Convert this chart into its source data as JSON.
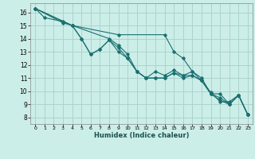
{
  "xlabel": "Humidex (Indice chaleur)",
  "bg_color": "#cceee8",
  "grid_color": "#aad4cc",
  "line_color": "#1a7070",
  "xlim": [
    -0.5,
    23.5
  ],
  "ylim": [
    7.5,
    16.7
  ],
  "xticks": [
    0,
    1,
    2,
    3,
    4,
    5,
    6,
    7,
    8,
    9,
    10,
    11,
    12,
    13,
    14,
    15,
    16,
    17,
    18,
    19,
    20,
    21,
    22,
    23
  ],
  "yticks": [
    8,
    9,
    10,
    11,
    12,
    13,
    14,
    15,
    16
  ],
  "lines": [
    [
      [
        0,
        16.3
      ],
      [
        1,
        15.6
      ],
      [
        3,
        15.3
      ],
      [
        4,
        15.0
      ],
      [
        5,
        14.0
      ],
      [
        6,
        12.8
      ],
      [
        7,
        13.2
      ],
      [
        8,
        13.9
      ],
      [
        9,
        13.3
      ],
      [
        10,
        12.5
      ],
      [
        11,
        11.5
      ],
      [
        12,
        11.0
      ],
      [
        13,
        11.5
      ],
      [
        14,
        11.2
      ],
      [
        15,
        11.6
      ],
      [
        16,
        11.2
      ],
      [
        17,
        11.2
      ],
      [
        18,
        10.8
      ],
      [
        19,
        9.9
      ],
      [
        20,
        9.2
      ],
      [
        21,
        9.2
      ],
      [
        22,
        9.7
      ],
      [
        23,
        8.2
      ]
    ],
    [
      [
        0,
        16.3
      ],
      [
        4,
        15.0
      ],
      [
        9,
        14.3
      ],
      [
        14,
        14.3
      ],
      [
        15,
        13.0
      ],
      [
        16,
        12.5
      ],
      [
        17,
        11.5
      ],
      [
        18,
        11.0
      ],
      [
        19,
        9.8
      ],
      [
        20,
        9.3
      ],
      [
        21,
        9.0
      ],
      [
        22,
        9.7
      ],
      [
        23,
        8.2
      ]
    ],
    [
      [
        0,
        16.3
      ],
      [
        4,
        15.0
      ],
      [
        8,
        14.0
      ],
      [
        9,
        13.5
      ],
      [
        10,
        12.8
      ],
      [
        11,
        11.5
      ],
      [
        12,
        11.0
      ],
      [
        13,
        11.0
      ],
      [
        14,
        11.0
      ],
      [
        15,
        11.4
      ],
      [
        16,
        11.2
      ],
      [
        17,
        11.5
      ],
      [
        18,
        10.8
      ],
      [
        19,
        9.8
      ],
      [
        20,
        9.8
      ],
      [
        21,
        9.0
      ],
      [
        22,
        9.7
      ],
      [
        23,
        8.2
      ]
    ],
    [
      [
        0,
        16.3
      ],
      [
        3,
        15.2
      ],
      [
        4,
        15.0
      ],
      [
        5,
        14.0
      ],
      [
        6,
        12.8
      ],
      [
        7,
        13.2
      ],
      [
        8,
        13.9
      ],
      [
        9,
        13.0
      ],
      [
        10,
        12.5
      ],
      [
        11,
        11.5
      ],
      [
        12,
        11.0
      ],
      [
        13,
        11.0
      ],
      [
        14,
        11.0
      ],
      [
        15,
        11.4
      ],
      [
        16,
        11.0
      ],
      [
        17,
        11.2
      ],
      [
        18,
        10.8
      ],
      [
        19,
        9.8
      ],
      [
        20,
        9.5
      ],
      [
        21,
        9.0
      ],
      [
        22,
        9.7
      ],
      [
        23,
        8.2
      ]
    ]
  ]
}
